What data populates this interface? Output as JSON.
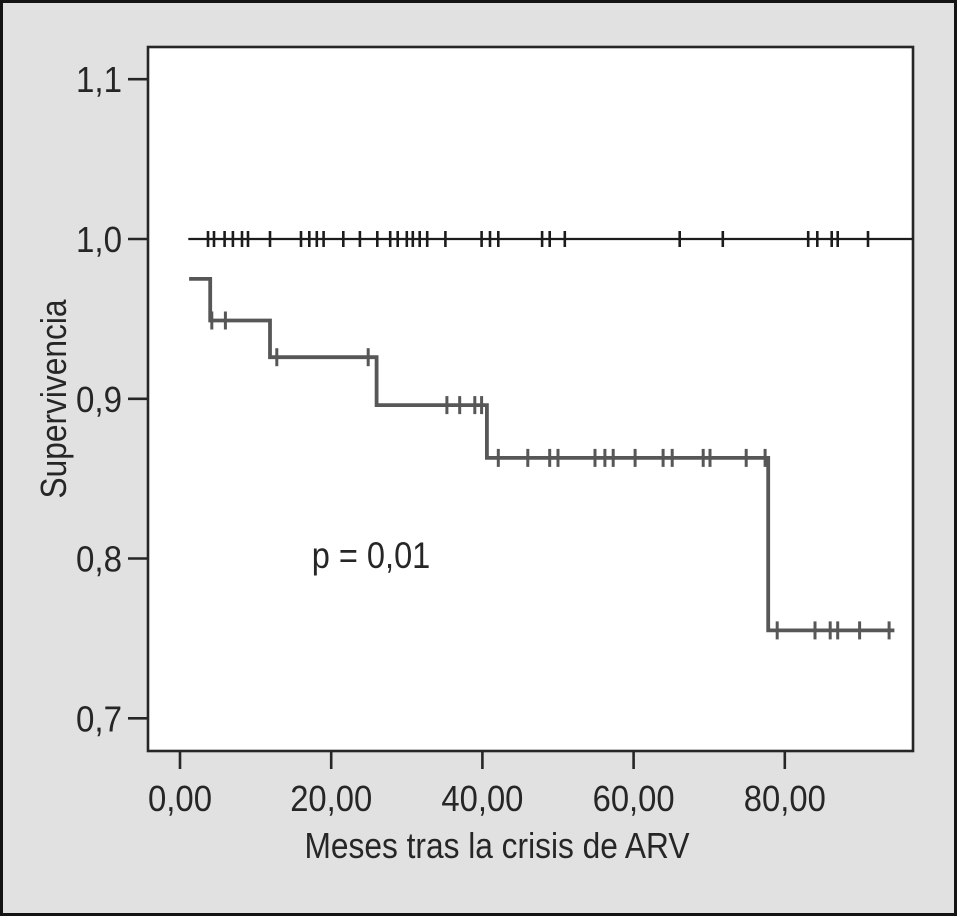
{
  "figure": {
    "background_color": "#e1e1e1",
    "outer_border_color": "#141414",
    "plot_background_color": "#ffffff",
    "axis_color": "#262626",
    "text_color": "#262626"
  },
  "chart_data": {
    "type": "line",
    "subtype": "kaplan-meier-survival",
    "title": "",
    "xlabel": "Meses tras la crisis de ARV",
    "ylabel": "Supervivencia",
    "xlim": [
      -4.2,
      97
    ],
    "ylim": [
      0.68,
      1.12
    ],
    "grid": "off",
    "legend": "none",
    "x_ticks": [
      0,
      20,
      40,
      60,
      80
    ],
    "x_tick_labels": [
      "0,00",
      "20,00",
      "40,00",
      "60,00",
      "80,00"
    ],
    "y_ticks": [
      1.1,
      1.0,
      0.9,
      0.8,
      0.7
    ],
    "y_tick_labels": [
      "1,1",
      "1,0",
      "0,9",
      "0,8",
      "0,7"
    ],
    "annotation": {
      "text": "p = 0,01",
      "x": 25.3,
      "y": 0.8
    },
    "series": [
      {
        "name": "censored-at-one-line",
        "color": "#1c1c1c",
        "steps": [
          [
            1.1,
            1.0
          ],
          [
            97.0,
            1.0
          ]
        ],
        "censored": [
          [
            3.7,
            1.0
          ],
          [
            4.5,
            1.0
          ],
          [
            5.9,
            1.0
          ],
          [
            7.0,
            1.0
          ],
          [
            8.2,
            1.0
          ],
          [
            9.0,
            1.0
          ],
          [
            11.9,
            1.0
          ],
          [
            16.0,
            1.0
          ],
          [
            17.1,
            1.0
          ],
          [
            18.1,
            1.0
          ],
          [
            19.0,
            1.0
          ],
          [
            21.6,
            1.0
          ],
          [
            23.8,
            1.0
          ],
          [
            26.1,
            1.0
          ],
          [
            27.8,
            1.0
          ],
          [
            28.8,
            1.0
          ],
          [
            30.0,
            1.0
          ],
          [
            30.8,
            1.0
          ],
          [
            31.7,
            1.0
          ],
          [
            32.7,
            1.0
          ],
          [
            35.1,
            1.0
          ],
          [
            39.9,
            1.0
          ],
          [
            41.0,
            1.0
          ],
          [
            42.1,
            1.0
          ],
          [
            47.9,
            1.0
          ],
          [
            48.9,
            1.0
          ],
          [
            50.9,
            1.0
          ],
          [
            66.1,
            1.0
          ],
          [
            71.8,
            1.0
          ],
          [
            83.1,
            1.0
          ],
          [
            84.3,
            1.0
          ],
          [
            86.2,
            1.0
          ],
          [
            87.0,
            1.0
          ],
          [
            91.0,
            1.0
          ]
        ]
      },
      {
        "name": "survival-step-curve",
        "color": "#575757",
        "steps": [
          [
            1.2,
            0.975
          ],
          [
            4.0,
            0.949
          ],
          [
            11.9,
            0.926
          ],
          [
            26.0,
            0.896
          ],
          [
            40.6,
            0.863
          ],
          [
            77.8,
            0.755
          ],
          [
            94.5,
            0.755
          ]
        ],
        "censored": [
          [
            4.2,
            0.949
          ],
          [
            6.0,
            0.949
          ],
          [
            12.8,
            0.926
          ],
          [
            24.9,
            0.926
          ],
          [
            35.3,
            0.896
          ],
          [
            37.0,
            0.896
          ],
          [
            39.0,
            0.896
          ],
          [
            39.9,
            0.896
          ],
          [
            42.1,
            0.863
          ],
          [
            46.0,
            0.863
          ],
          [
            48.9,
            0.863
          ],
          [
            50.0,
            0.863
          ],
          [
            54.9,
            0.863
          ],
          [
            56.2,
            0.863
          ],
          [
            57.3,
            0.863
          ],
          [
            60.2,
            0.863
          ],
          [
            63.9,
            0.863
          ],
          [
            65.1,
            0.863
          ],
          [
            69.2,
            0.863
          ],
          [
            70.1,
            0.863
          ],
          [
            74.9,
            0.863
          ],
          [
            77.4,
            0.863
          ],
          [
            79.0,
            0.755
          ],
          [
            84.0,
            0.755
          ],
          [
            86.0,
            0.755
          ],
          [
            87.0,
            0.755
          ],
          [
            89.9,
            0.755
          ],
          [
            93.8,
            0.755
          ]
        ]
      }
    ]
  }
}
